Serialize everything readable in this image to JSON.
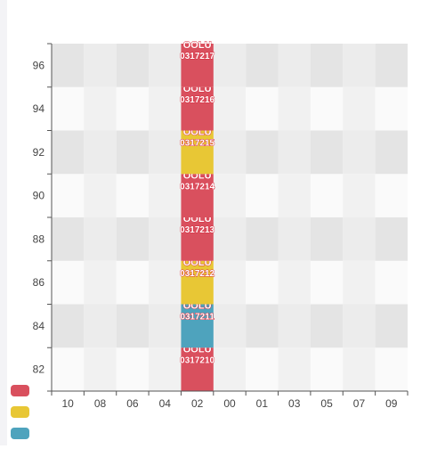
{
  "chart_data": {
    "type": "heatmap",
    "title": "",
    "xlabel": "",
    "ylabel": "",
    "x_categories": [
      "10",
      "08",
      "06",
      "04",
      "02",
      "00",
      "01",
      "03",
      "05",
      "07",
      "09"
    ],
    "y_categories": [
      "82",
      "84",
      "86",
      "88",
      "90",
      "92",
      "94",
      "96"
    ],
    "grid": true,
    "cells": [
      {
        "x": "02",
        "y": "82",
        "label_line1": "OOLU",
        "label_line2": "0317210",
        "status": 0
      },
      {
        "x": "02",
        "y": "84",
        "label_line1": "OOLU",
        "label_line2": "0317211",
        "status": 2
      },
      {
        "x": "02",
        "y": "86",
        "label_line1": "OOLU",
        "label_line2": "0317212",
        "status": 1
      },
      {
        "x": "02",
        "y": "88",
        "label_line1": "OOLU",
        "label_line2": "0317213",
        "status": 0
      },
      {
        "x": "02",
        "y": "90",
        "label_line1": "OOLU",
        "label_line2": "0317214",
        "status": 0
      },
      {
        "x": "02",
        "y": "92",
        "label_line1": "OOLU",
        "label_line2": "0317215",
        "status": 1
      },
      {
        "x": "02",
        "y": "94",
        "label_line1": "OOLU",
        "label_line2": "0317216",
        "status": 0
      },
      {
        "x": "02",
        "y": "96",
        "label_line1": "OOLU",
        "label_line2": "0317217",
        "status": 0
      }
    ],
    "status_colors": [
      "#d9505e",
      "#e8c735",
      "#4ea3bd"
    ],
    "legend": {
      "position": "bottom-left",
      "items": [
        {
          "color": "#d9505e",
          "label": ""
        },
        {
          "color": "#e8c735",
          "label": ""
        },
        {
          "color": "#4ea3bd",
          "label": ""
        }
      ]
    }
  }
}
